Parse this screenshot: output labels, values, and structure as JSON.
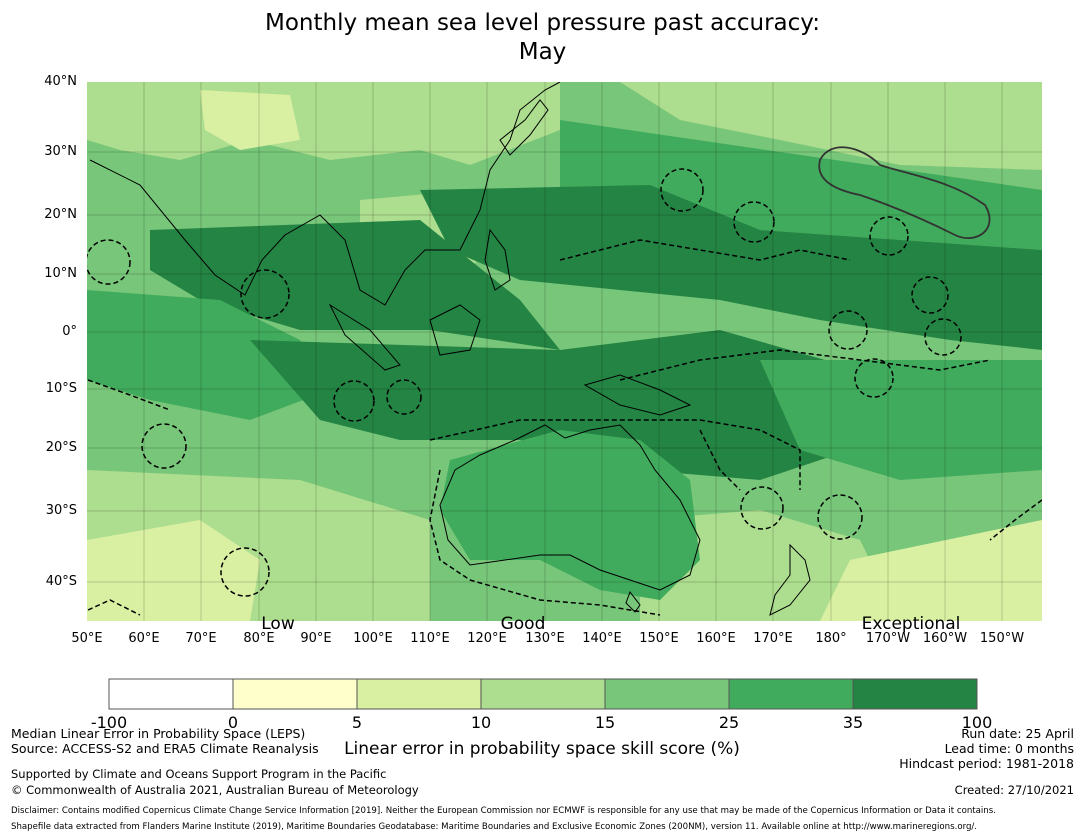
{
  "title": {
    "line1": "Monthly mean sea level pressure past accuracy:",
    "line2": "May"
  },
  "map": {
    "lat_labels": [
      "40°N",
      "30°N",
      "20°N",
      "10°N",
      "0°",
      "10°S",
      "20°S",
      "30°S",
      "40°S"
    ],
    "lon_labels": [
      "50°E",
      "60°E",
      "70°E",
      "80°E",
      "90°E",
      "100°E",
      "110°E",
      "120°E",
      "130°E",
      "140°E",
      "150°E",
      "160°E",
      "170°E",
      "180°",
      "170°W",
      "160°W",
      "150°W"
    ],
    "skill_labels": [
      "Low",
      "Good",
      "Exceptional"
    ]
  },
  "colorbar": {
    "ticks": [
      "-100",
      "0",
      "5",
      "10",
      "15",
      "25",
      "35",
      "100"
    ],
    "colors": [
      "#ffffff",
      "#ffffcc",
      "#d9f0a3",
      "#addd8e",
      "#78c679",
      "#41ab5d",
      "#238443"
    ],
    "title": "Linear error in probability space skill score (%)"
  },
  "info": {
    "metric": "Median Linear Error in Probability Space (LEPS)",
    "source": "Source: ACCESS-S2 and ERA5 Climate Reanalysis",
    "support": "Supported by Climate and Oceans Support Program in the Pacific",
    "copyright": "© Commonwealth of Australia 2021, Australian Bureau of Meteorology",
    "run_date": "Run date: 25 April",
    "lead_time": "Lead time: 0 months",
    "hindcast": "Hindcast period: 1981-2018",
    "created": "Created: 27/10/2021",
    "disclaimer": "Disclaimer: Contains modified Copernicus Climate Change Service Information [2019]. Neither the European Commission nor ECMWF is responsible for any use that may be made of the Copernicus Information or Data it contains.",
    "shapefile": "Shapefile data extracted from Flanders Marine Institute (2019), Maritime Boundaries Geodatabase: Maritime Boundaries and Exclusive Economic Zones (200NM), version 11. Available online at http://www.marineregions.org/."
  }
}
